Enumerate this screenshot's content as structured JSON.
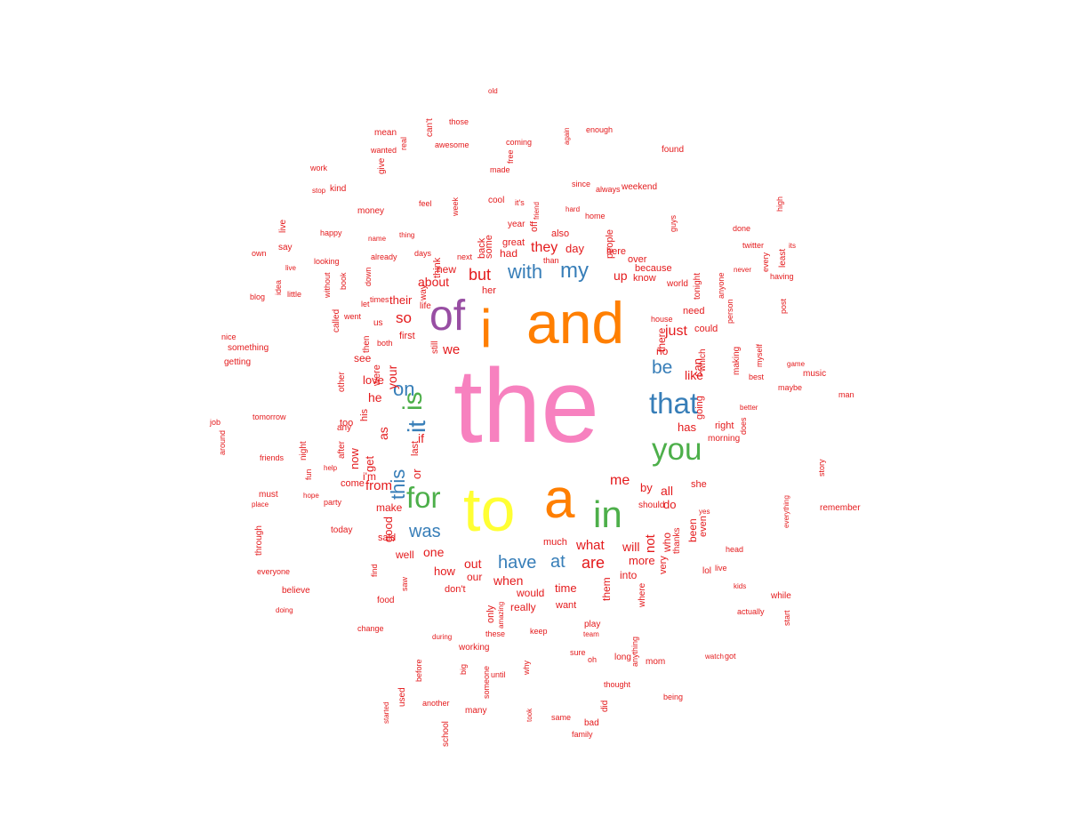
{
  "palette": {
    "pink": "#f781bf",
    "orange": "#ff7f00",
    "purple": "#984ea3",
    "yellow": "#ffff33",
    "green": "#4daf4a",
    "blue": "#377eb8",
    "red": "#e41a1c"
  },
  "words": [
    {
      "text": "the",
      "color": "pink"
    },
    {
      "text": "i",
      "color": "orange"
    },
    {
      "text": "and",
      "color": "orange"
    },
    {
      "text": "of",
      "color": "purple"
    },
    {
      "text": "to",
      "color": "yellow"
    },
    {
      "text": "a",
      "color": "orange"
    },
    {
      "text": "in",
      "color": "green"
    },
    {
      "text": "is",
      "color": "green"
    },
    {
      "text": "for",
      "color": "green"
    },
    {
      "text": "that",
      "color": "blue"
    },
    {
      "text": "you",
      "color": "green"
    },
    {
      "text": "it",
      "color": "blue"
    },
    {
      "text": "this",
      "color": "blue"
    },
    {
      "text": "with",
      "color": "blue"
    },
    {
      "text": "my",
      "color": "blue"
    },
    {
      "text": "on",
      "color": "blue"
    },
    {
      "text": "was",
      "color": "blue"
    },
    {
      "text": "have",
      "color": "blue"
    },
    {
      "text": "be",
      "color": "blue"
    },
    {
      "text": "at",
      "color": "blue"
    },
    {
      "text": "are",
      "color": "red"
    },
    {
      "text": "but",
      "color": "red"
    },
    {
      "text": "me",
      "color": "red"
    },
    {
      "text": "so",
      "color": "red"
    },
    {
      "text": "all",
      "color": "red"
    },
    {
      "text": "not",
      "color": "red"
    },
    {
      "text": "just",
      "color": "red"
    },
    {
      "text": "they",
      "color": "red"
    },
    {
      "text": "what",
      "color": "red"
    },
    {
      "text": "like",
      "color": "red"
    },
    {
      "text": "from",
      "color": "red"
    },
    {
      "text": "we",
      "color": "red"
    },
    {
      "text": "about",
      "color": "red"
    },
    {
      "text": "up",
      "color": "red"
    },
    {
      "text": "if",
      "color": "red"
    },
    {
      "text": "as",
      "color": "red"
    },
    {
      "text": "one",
      "color": "red"
    },
    {
      "text": "your",
      "color": "red"
    },
    {
      "text": "or",
      "color": "red"
    },
    {
      "text": "by",
      "color": "red"
    },
    {
      "text": "out",
      "color": "red"
    },
    {
      "text": "when",
      "color": "red"
    },
    {
      "text": "get",
      "color": "red"
    },
    {
      "text": "he",
      "color": "red"
    },
    {
      "text": "do",
      "color": "red"
    },
    {
      "text": "has",
      "color": "red"
    },
    {
      "text": "can",
      "color": "red"
    },
    {
      "text": "more",
      "color": "red"
    },
    {
      "text": "will",
      "color": "red"
    },
    {
      "text": "time",
      "color": "red"
    },
    {
      "text": "there",
      "color": "red"
    },
    {
      "text": "good",
      "color": "red"
    },
    {
      "text": "day",
      "color": "red"
    },
    {
      "text": "had",
      "color": "red"
    },
    {
      "text": "new",
      "color": "red"
    },
    {
      "text": "their",
      "color": "red"
    },
    {
      "text": "love",
      "color": "red"
    },
    {
      "text": "now",
      "color": "red"
    },
    {
      "text": "how",
      "color": "red"
    },
    {
      "text": "would",
      "color": "red"
    },
    {
      "text": "been",
      "color": "red"
    },
    {
      "text": "who",
      "color": "red"
    },
    {
      "text": "no",
      "color": "red"
    },
    {
      "text": "our",
      "color": "red"
    },
    {
      "text": "into",
      "color": "red"
    },
    {
      "text": "make",
      "color": "red"
    },
    {
      "text": "her",
      "color": "red"
    },
    {
      "text": "really",
      "color": "red"
    },
    {
      "text": "well",
      "color": "red"
    },
    {
      "text": "see",
      "color": "red"
    },
    {
      "text": "them",
      "color": "red"
    },
    {
      "text": "know",
      "color": "red"
    },
    {
      "text": "because",
      "color": "red"
    },
    {
      "text": "some",
      "color": "red"
    },
    {
      "text": "people",
      "color": "red"
    },
    {
      "text": "great",
      "color": "red"
    },
    {
      "text": "she",
      "color": "red"
    },
    {
      "text": "come",
      "color": "red"
    },
    {
      "text": "last",
      "color": "red"
    },
    {
      "text": "first",
      "color": "red"
    },
    {
      "text": "were",
      "color": "red"
    },
    {
      "text": "could",
      "color": "red"
    },
    {
      "text": "need",
      "color": "red"
    },
    {
      "text": "right",
      "color": "red"
    },
    {
      "text": "said",
      "color": "red"
    },
    {
      "text": "very",
      "color": "red"
    },
    {
      "text": "even",
      "color": "red"
    },
    {
      "text": "much",
      "color": "red"
    },
    {
      "text": "only",
      "color": "red"
    },
    {
      "text": "don't",
      "color": "red"
    },
    {
      "text": "his",
      "color": "red"
    },
    {
      "text": "going",
      "color": "red"
    },
    {
      "text": "want",
      "color": "red"
    },
    {
      "text": "think",
      "color": "red"
    },
    {
      "text": "too",
      "color": "red"
    },
    {
      "text": "here",
      "color": "red"
    },
    {
      "text": "over",
      "color": "red"
    },
    {
      "text": "back",
      "color": "red"
    },
    {
      "text": "also",
      "color": "red"
    },
    {
      "text": "off",
      "color": "red"
    },
    {
      "text": "any",
      "color": "red"
    },
    {
      "text": "still",
      "color": "red"
    },
    {
      "text": "which",
      "color": "red"
    },
    {
      "text": "year",
      "color": "red"
    },
    {
      "text": "i'm",
      "color": "red"
    },
    {
      "text": "us",
      "color": "red"
    },
    {
      "text": "after",
      "color": "red"
    },
    {
      "text": "other",
      "color": "red"
    },
    {
      "text": "then",
      "color": "red"
    },
    {
      "text": "thanks",
      "color": "red"
    },
    {
      "text": "should",
      "color": "red"
    },
    {
      "text": "way",
      "color": "red"
    },
    {
      "text": "life",
      "color": "red"
    },
    {
      "text": "work",
      "color": "red"
    },
    {
      "text": "being",
      "color": "red"
    },
    {
      "text": "it's",
      "color": "red"
    },
    {
      "text": "did",
      "color": "red"
    },
    {
      "text": "lol",
      "color": "red"
    },
    {
      "text": "these",
      "color": "red"
    },
    {
      "text": "today",
      "color": "red"
    },
    {
      "text": "where",
      "color": "red"
    },
    {
      "text": "best",
      "color": "red"
    },
    {
      "text": "through",
      "color": "red"
    },
    {
      "text": "something",
      "color": "red"
    },
    {
      "text": "week",
      "color": "red"
    },
    {
      "text": "find",
      "color": "red"
    },
    {
      "text": "always",
      "color": "red"
    },
    {
      "text": "happy",
      "color": "red"
    },
    {
      "text": "hope",
      "color": "red"
    },
    {
      "text": "around",
      "color": "red"
    },
    {
      "text": "never",
      "color": "red"
    },
    {
      "text": "thing",
      "color": "red"
    },
    {
      "text": "many",
      "color": "red"
    },
    {
      "text": "long",
      "color": "red"
    },
    {
      "text": "little",
      "color": "red"
    },
    {
      "text": "place",
      "color": "red"
    },
    {
      "text": "same",
      "color": "red"
    },
    {
      "text": "those",
      "color": "red"
    },
    {
      "text": "say",
      "color": "red"
    },
    {
      "text": "why",
      "color": "red"
    },
    {
      "text": "feel",
      "color": "red"
    },
    {
      "text": "next",
      "color": "red"
    },
    {
      "text": "before",
      "color": "red"
    },
    {
      "text": "keep",
      "color": "red"
    },
    {
      "text": "game",
      "color": "red"
    },
    {
      "text": "home",
      "color": "red"
    },
    {
      "text": "got",
      "color": "red"
    },
    {
      "text": "down",
      "color": "red"
    },
    {
      "text": "again",
      "color": "red"
    },
    {
      "text": "sure",
      "color": "red"
    },
    {
      "text": "while",
      "color": "red"
    },
    {
      "text": "own",
      "color": "red"
    },
    {
      "text": "another",
      "color": "red"
    },
    {
      "text": "made",
      "color": "red"
    },
    {
      "text": "than",
      "color": "red"
    },
    {
      "text": "help",
      "color": "red"
    },
    {
      "text": "went",
      "color": "red"
    },
    {
      "text": "let",
      "color": "red"
    },
    {
      "text": "world",
      "color": "red"
    },
    {
      "text": "doing",
      "color": "red"
    },
    {
      "text": "school",
      "color": "red"
    },
    {
      "text": "since",
      "color": "red"
    },
    {
      "text": "looking",
      "color": "red"
    },
    {
      "text": "every",
      "color": "red"
    },
    {
      "text": "old",
      "color": "red"
    },
    {
      "text": "family",
      "color": "red"
    },
    {
      "text": "used",
      "color": "red"
    },
    {
      "text": "found",
      "color": "red"
    },
    {
      "text": "night",
      "color": "red"
    },
    {
      "text": "stop",
      "color": "red"
    },
    {
      "text": "took",
      "color": "red"
    },
    {
      "text": "both",
      "color": "red"
    },
    {
      "text": "money",
      "color": "red"
    },
    {
      "text": "without",
      "color": "red"
    },
    {
      "text": "remember",
      "color": "red"
    },
    {
      "text": "mean",
      "color": "red"
    },
    {
      "text": "friends",
      "color": "red"
    },
    {
      "text": "awesome",
      "color": "red"
    },
    {
      "text": "guys",
      "color": "red"
    },
    {
      "text": "start",
      "color": "red"
    },
    {
      "text": "music",
      "color": "red"
    },
    {
      "text": "maybe",
      "color": "red"
    },
    {
      "text": "anyone",
      "color": "red"
    },
    {
      "text": "better",
      "color": "red"
    },
    {
      "text": "person",
      "color": "red"
    },
    {
      "text": "enough",
      "color": "red"
    },
    {
      "text": "story",
      "color": "red"
    },
    {
      "text": "days",
      "color": "red"
    },
    {
      "text": "amazing",
      "color": "red"
    },
    {
      "text": "everything",
      "color": "red"
    },
    {
      "text": "thought",
      "color": "red"
    },
    {
      "text": "morning",
      "color": "red"
    },
    {
      "text": "house",
      "color": "red"
    },
    {
      "text": "having",
      "color": "red"
    },
    {
      "text": "change",
      "color": "red"
    },
    {
      "text": "blog",
      "color": "red"
    },
    {
      "text": "food",
      "color": "red"
    },
    {
      "text": "during",
      "color": "red"
    },
    {
      "text": "believe",
      "color": "red"
    },
    {
      "text": "weekend",
      "color": "red"
    },
    {
      "text": "working",
      "color": "red"
    },
    {
      "text": "watch",
      "color": "red"
    },
    {
      "text": "friend",
      "color": "red"
    },
    {
      "text": "making",
      "color": "red"
    },
    {
      "text": "team",
      "color": "red"
    },
    {
      "text": "coming",
      "color": "red"
    },
    {
      "text": "times",
      "color": "red"
    },
    {
      "text": "myself",
      "color": "red"
    },
    {
      "text": "must",
      "color": "red"
    },
    {
      "text": "does",
      "color": "red"
    },
    {
      "text": "idea",
      "color": "red"
    },
    {
      "text": "saw",
      "color": "red"
    },
    {
      "text": "started",
      "color": "red"
    },
    {
      "text": "everyone",
      "color": "red"
    },
    {
      "text": "name",
      "color": "red"
    },
    {
      "text": "anything",
      "color": "red"
    },
    {
      "text": "kind",
      "color": "red"
    },
    {
      "text": "kids",
      "color": "red"
    },
    {
      "text": "called",
      "color": "red"
    },
    {
      "text": "bad",
      "color": "red"
    },
    {
      "text": "wanted",
      "color": "red"
    },
    {
      "text": "high",
      "color": "red"
    },
    {
      "text": "tonight",
      "color": "red"
    },
    {
      "text": "someone",
      "color": "red"
    },
    {
      "text": "party",
      "color": "red"
    },
    {
      "text": "post",
      "color": "red"
    },
    {
      "text": "real",
      "color": "red"
    },
    {
      "text": "job",
      "color": "red"
    },
    {
      "text": "mom",
      "color": "red"
    },
    {
      "text": "man",
      "color": "red"
    },
    {
      "text": "give",
      "color": "red"
    },
    {
      "text": "play",
      "color": "red"
    },
    {
      "text": "already",
      "color": "red"
    },
    {
      "text": "twitter",
      "color": "red"
    },
    {
      "text": "fun",
      "color": "red"
    },
    {
      "text": "its",
      "color": "red"
    },
    {
      "text": "until",
      "color": "red"
    },
    {
      "text": "head",
      "color": "red"
    },
    {
      "text": "oh",
      "color": "red"
    },
    {
      "text": "can't",
      "color": "red"
    },
    {
      "text": "hard",
      "color": "red"
    },
    {
      "text": "done",
      "color": "red"
    },
    {
      "text": "nice",
      "color": "red"
    },
    {
      "text": "cool",
      "color": "red"
    },
    {
      "text": "free",
      "color": "red"
    },
    {
      "text": "least",
      "color": "red"
    },
    {
      "text": "getting",
      "color": "red"
    },
    {
      "text": "actually",
      "color": "red"
    },
    {
      "text": "tomorrow",
      "color": "red"
    },
    {
      "text": "book",
      "color": "red"
    },
    {
      "text": "big",
      "color": "red"
    },
    {
      "text": "live",
      "color": "red"
    },
    {
      "text": "live",
      "color": "red"
    },
    {
      "text": "yes",
      "color": "red"
    },
    {
      "text": "live",
      "color": "red"
    }
  ]
}
